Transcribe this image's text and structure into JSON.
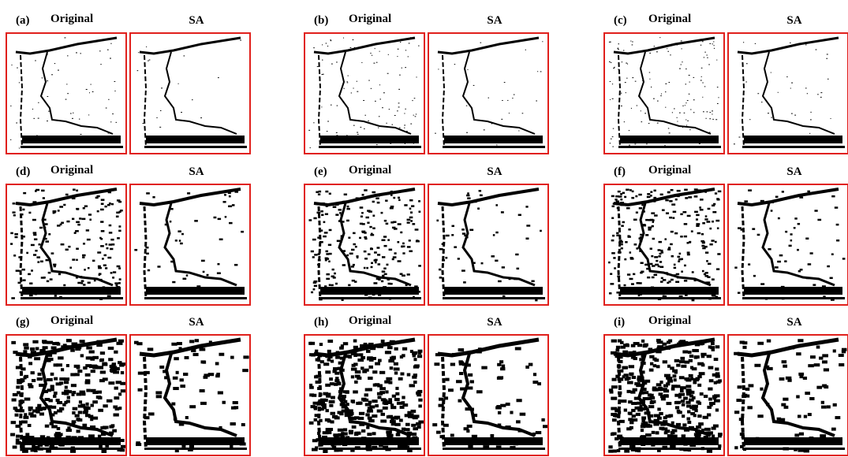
{
  "panels": [
    {
      "label": "(a)",
      "left_title": "Original",
      "right_title": "SA"
    },
    {
      "label": "(b)",
      "left_title": "Original",
      "right_title": "SA"
    },
    {
      "label": "(c)",
      "left_title": "Original",
      "right_title": "SA"
    },
    {
      "label": "(d)",
      "left_title": "Original",
      "right_title": "SA"
    },
    {
      "label": "(e)",
      "left_title": "Original",
      "right_title": "SA"
    },
    {
      "label": "(f)",
      "left_title": "Original",
      "right_title": "SA"
    },
    {
      "label": "(g)",
      "left_title": "Original",
      "right_title": "SA"
    },
    {
      "label": "(h)",
      "left_title": "Original",
      "right_title": "SA"
    },
    {
      "label": "(i)",
      "left_title": "Original",
      "right_title": "SA"
    }
  ]
}
